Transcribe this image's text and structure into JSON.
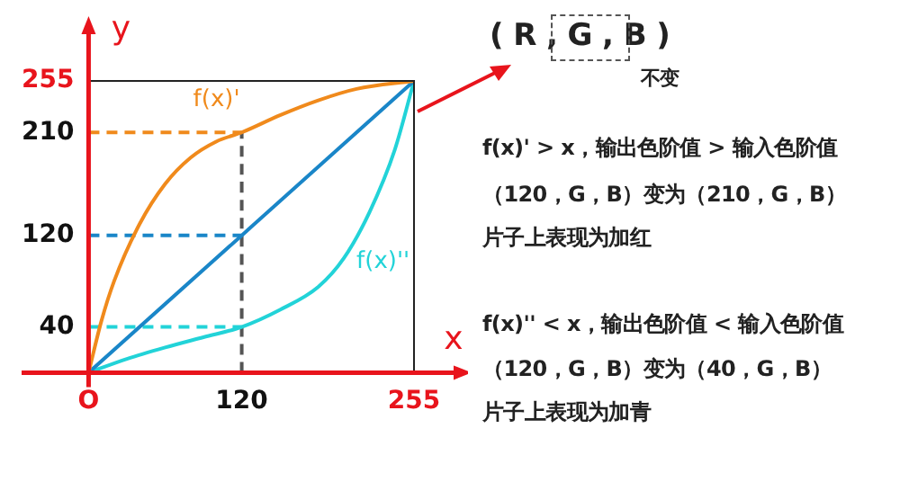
{
  "chart_data": {
    "type": "line",
    "xlabel": "x",
    "ylabel": "y",
    "xlim": [
      0,
      255
    ],
    "ylim": [
      0,
      255
    ],
    "xticks": [
      {
        "value": 0,
        "label": "O"
      },
      120,
      255
    ],
    "yticks": [
      40,
      120,
      210,
      255
    ],
    "grid": false,
    "legend": false,
    "marker": "none",
    "line_style": "solid",
    "series": [
      {
        "name": "f(x)'",
        "color": "#f08a1c",
        "x": [
          0,
          10,
          20,
          40,
          60,
          80,
          100,
          120,
          150,
          180,
          210,
          255
        ],
        "values": [
          0,
          45,
          80,
          130,
          165,
          188,
          202,
          210,
          225,
          238,
          248,
          255
        ]
      },
      {
        "color": "#1a86c8",
        "x": [
          0,
          255
        ],
        "values": [
          0,
          255
        ]
      },
      {
        "name": "f(x)''",
        "color": "#22d3d8",
        "x": [
          0,
          30,
          60,
          90,
          120,
          150,
          180,
          200,
          220,
          240,
          255
        ],
        "values": [
          0,
          12,
          22,
          31,
          40,
          55,
          75,
          100,
          140,
          195,
          255
        ]
      },
      {
        "color": "#f08a1c",
        "line_style": "dashed",
        "x": [
          0,
          120
        ],
        "values": [
          210,
          210
        ]
      },
      {
        "color": "#1a86c8",
        "line_style": "dashed",
        "x": [
          0,
          120
        ],
        "values": [
          120,
          120
        ]
      },
      {
        "color": "#22d3d8",
        "line_style": "dashed",
        "x": [
          0,
          120
        ],
        "values": [
          40,
          40
        ]
      },
      {
        "color": "#555555",
        "line_style": "dashed",
        "x": [
          120,
          120
        ],
        "values": [
          0,
          210
        ]
      }
    ],
    "annotations": [
      "( R , G , B )",
      "不变",
      "f(x)' > x，输出色阶值 > 输入色阶值",
      "（120，G，B）变为（210，G，B）",
      "片子上表现为加红",
      "f(x)'' < x，输出色阶值 < 输入色阶值",
      "（120，G，B）变为（40，G，B）",
      "片子上表现为加青"
    ]
  }
}
